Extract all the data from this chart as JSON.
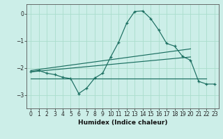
{
  "xlabel": "Humidex (Indice chaleur)",
  "ylabel": "",
  "bg_color": "#cceee8",
  "grid_color": "#aaddcc",
  "line_color": "#1a6e60",
  "xlim": [
    -0.5,
    23.5
  ],
  "ylim": [
    -3.5,
    0.35
  ],
  "yticks": [
    0,
    -1,
    -2,
    -3
  ],
  "xticks": [
    0,
    1,
    2,
    3,
    4,
    5,
    6,
    7,
    8,
    9,
    10,
    11,
    12,
    13,
    14,
    15,
    16,
    17,
    18,
    19,
    20,
    21,
    22,
    23
  ],
  "curve1_x": [
    0,
    1,
    2,
    3,
    4,
    5,
    6,
    7,
    8,
    9,
    10,
    11,
    12,
    13,
    14,
    15,
    16,
    17,
    18,
    19,
    20,
    21,
    22,
    23
  ],
  "curve1_y": [
    -2.15,
    -2.1,
    -2.2,
    -2.25,
    -2.35,
    -2.4,
    -2.95,
    -2.75,
    -2.38,
    -2.2,
    -1.6,
    -1.05,
    -0.35,
    0.08,
    0.1,
    -0.18,
    -0.6,
    -1.1,
    -1.2,
    -1.58,
    -1.72,
    -2.5,
    -2.6,
    -2.6
  ],
  "line1_x": [
    0,
    20
  ],
  "line1_y": [
    -2.1,
    -1.3
  ],
  "line2_x": [
    0,
    20
  ],
  "line2_y": [
    -2.15,
    -1.6
  ],
  "line3_x": [
    0,
    22
  ],
  "line3_y": [
    -2.4,
    -2.4
  ]
}
